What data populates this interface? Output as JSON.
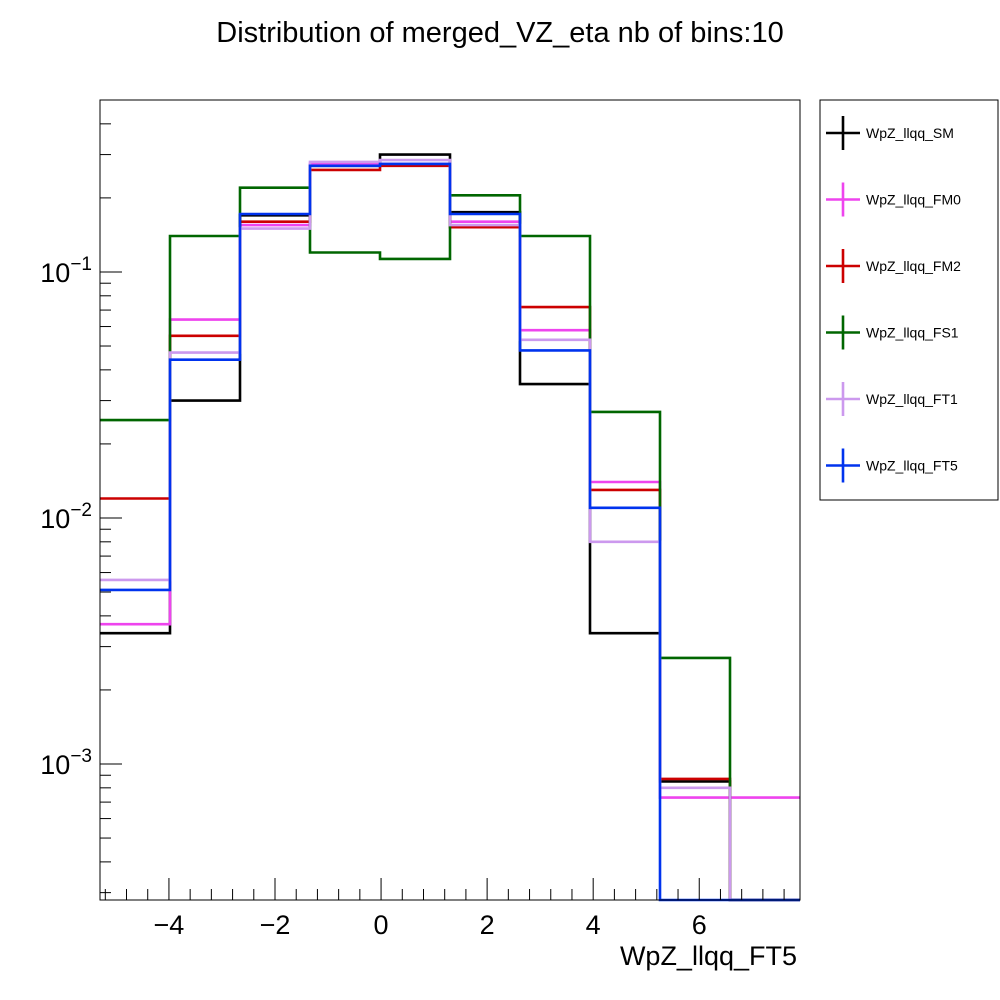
{
  "chart_data": {
    "type": "line",
    "style": "step-histogram",
    "title": "Distribution of merged_VZ_eta nb of bins:10",
    "xlabel": "WpZ_llqq_FT5",
    "ylabel": "",
    "y_scale": "log",
    "xlim": [
      -5.3,
      7.9
    ],
    "ylim": [
      0.00028,
      0.5
    ],
    "x_ticks": [
      -4,
      -2,
      0,
      2,
      4,
      6
    ],
    "x_tick_labels": [
      "−4",
      "−2",
      "0",
      "2",
      "4",
      "6"
    ],
    "y_ticks": [
      {
        "value": 0.1,
        "base": "10",
        "exp": "−1"
      },
      {
        "value": 0.01,
        "base": "10",
        "exp": "−2"
      },
      {
        "value": 0.001,
        "base": "10",
        "exp": "−3"
      }
    ],
    "bin_edges": [
      -5.3,
      -3.98,
      -2.66,
      -1.34,
      -0.02,
      1.3,
      2.62,
      3.94,
      5.26,
      6.58,
      7.9
    ],
    "legend_position": "right-outside",
    "series": [
      {
        "name": "WpZ_llqq_SM",
        "color": "#000000",
        "values": [
          0.0034,
          0.03,
          0.17,
          0.27,
          0.3,
          0.175,
          0.035,
          0.0034,
          0.00085,
          0.00028
        ]
      },
      {
        "name": "WpZ_llqq_FM0",
        "color": "#ee44ee",
        "values": [
          0.0037,
          0.064,
          0.155,
          0.275,
          0.275,
          0.16,
          0.058,
          0.014,
          0.00073,
          0.00073
        ]
      },
      {
        "name": "WpZ_llqq_FM2",
        "color": "#cc0000",
        "values": [
          0.012,
          0.055,
          0.16,
          0.26,
          0.27,
          0.152,
          0.072,
          0.013,
          0.00087,
          0.00028
        ]
      },
      {
        "name": "WpZ_llqq_FS1",
        "color": "#006600",
        "values": [
          0.025,
          0.14,
          0.22,
          0.12,
          0.113,
          0.205,
          0.14,
          0.027,
          0.0027,
          0.00028
        ]
      },
      {
        "name": "WpZ_llqq_FT1",
        "color": "#cc99ee",
        "values": [
          0.0056,
          0.047,
          0.15,
          0.28,
          0.285,
          0.155,
          0.053,
          0.008,
          0.0008,
          0.00028
        ]
      },
      {
        "name": "WpZ_llqq_FT5",
        "color": "#0033ee",
        "values": [
          0.0051,
          0.044,
          0.172,
          0.27,
          0.275,
          0.172,
          0.048,
          0.011,
          0.00028,
          0.00028
        ]
      }
    ]
  }
}
